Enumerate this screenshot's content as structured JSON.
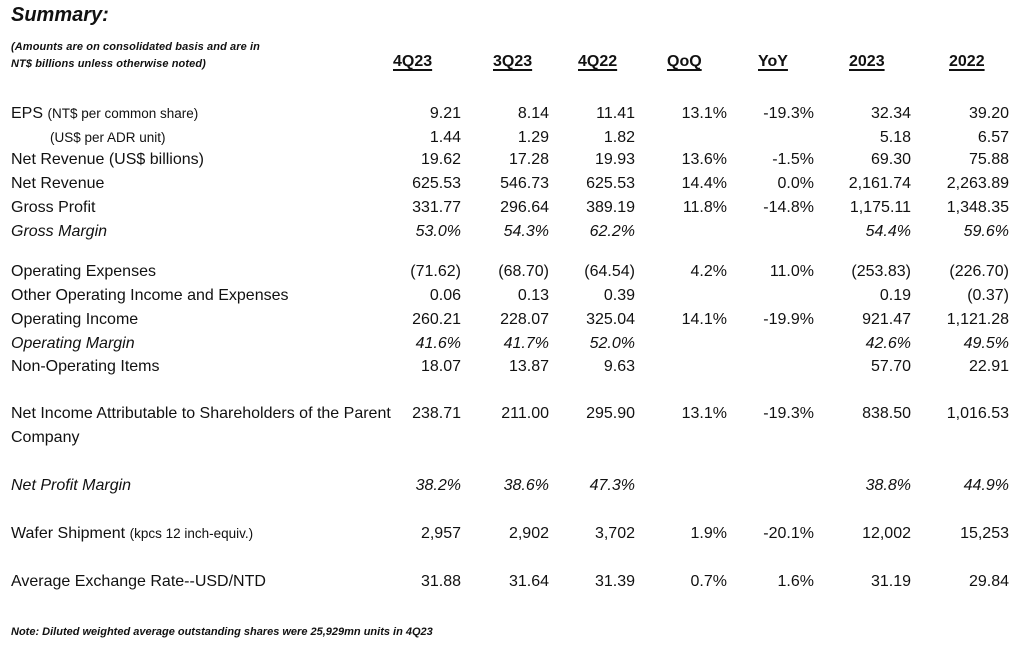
{
  "title": "Summary:",
  "subnote_line1": "(Amounts are on consolidated basis and are in",
  "subnote_line2": "NT$ billions unless otherwise noted)",
  "headers": {
    "q4_23": "4Q23",
    "q3_23": "3Q23",
    "q4_22": "4Q22",
    "qoq": "QoQ",
    "yoy": "YoY",
    "y2023": "2023",
    "y2022": "2022"
  },
  "rows": {
    "eps": {
      "label": "EPS",
      "sub": "(NT$ per common share)",
      "v": [
        "9.21",
        "8.14",
        "11.41",
        "13.1%",
        "-19.3%",
        "32.34",
        "39.20"
      ]
    },
    "adr": {
      "label": "(US$ per ADR unit)",
      "v": [
        "1.44",
        "1.29",
        "1.82",
        "",
        "",
        "5.18",
        "6.57"
      ]
    },
    "rev_usd": {
      "label": "Net Revenue (US$ billions)",
      "v": [
        "19.62",
        "17.28",
        "19.93",
        "13.6%",
        "-1.5%",
        "69.30",
        "75.88"
      ]
    },
    "rev": {
      "label": "Net Revenue",
      "v": [
        "625.53",
        "546.73",
        "625.53",
        "14.4%",
        "0.0%",
        "2,161.74",
        "2,263.89"
      ]
    },
    "gp": {
      "label": "Gross Profit",
      "v": [
        "331.77",
        "296.64",
        "389.19",
        "11.8%",
        "-14.8%",
        "1,175.11",
        "1,348.35"
      ]
    },
    "gm": {
      "label": "Gross Margin",
      "v": [
        "53.0%",
        "54.3%",
        "62.2%",
        "",
        "",
        "54.4%",
        "59.6%"
      ]
    },
    "opex": {
      "label": "Operating Expenses",
      "v": [
        "(71.62)",
        "(68.70)",
        "(64.54)",
        "4.2%",
        "11.0%",
        "(253.83)",
        "(226.70)"
      ]
    },
    "other": {
      "label": "Other Operating Income and Expenses",
      "v": [
        "0.06",
        "0.13",
        "0.39",
        "",
        "",
        "0.19",
        "(0.37)"
      ]
    },
    "opinc": {
      "label": "Operating Income",
      "v": [
        "260.21",
        "228.07",
        "325.04",
        "14.1%",
        "-19.9%",
        "921.47",
        "1,121.28"
      ]
    },
    "opm": {
      "label": "Operating Margin",
      "v": [
        "41.6%",
        "41.7%",
        "52.0%",
        "",
        "",
        "42.6%",
        "49.5%"
      ]
    },
    "nonop": {
      "label": "Non-Operating Items",
      "v": [
        "18.07",
        "13.87",
        "9.63",
        "",
        "",
        "57.70",
        "22.91"
      ]
    },
    "ni": {
      "label": "Net Income Attributable to Shareholders of the Parent Company",
      "v": [
        "238.71",
        "211.00",
        "295.90",
        "13.1%",
        "-19.3%",
        "838.50",
        "1,016.53"
      ]
    },
    "npm": {
      "label": "Net Profit Margin",
      "v": [
        "38.2%",
        "38.6%",
        "47.3%",
        "",
        "",
        "38.8%",
        "44.9%"
      ]
    },
    "wafer": {
      "label": "Wafer Shipment",
      "sub": "(kpcs 12 inch-equiv.)",
      "v": [
        "2,957",
        "2,902",
        "3,702",
        "1.9%",
        "-20.1%",
        "12,002",
        "15,253"
      ]
    },
    "fx": {
      "label": "Average Exchange Rate--USD/NTD",
      "v": [
        "31.88",
        "31.64",
        "31.39",
        "0.7%",
        "1.6%",
        "31.19",
        "29.84"
      ]
    }
  },
  "footnote": "Note: Diluted weighted average outstanding shares were 25,929mn units in 4Q23"
}
